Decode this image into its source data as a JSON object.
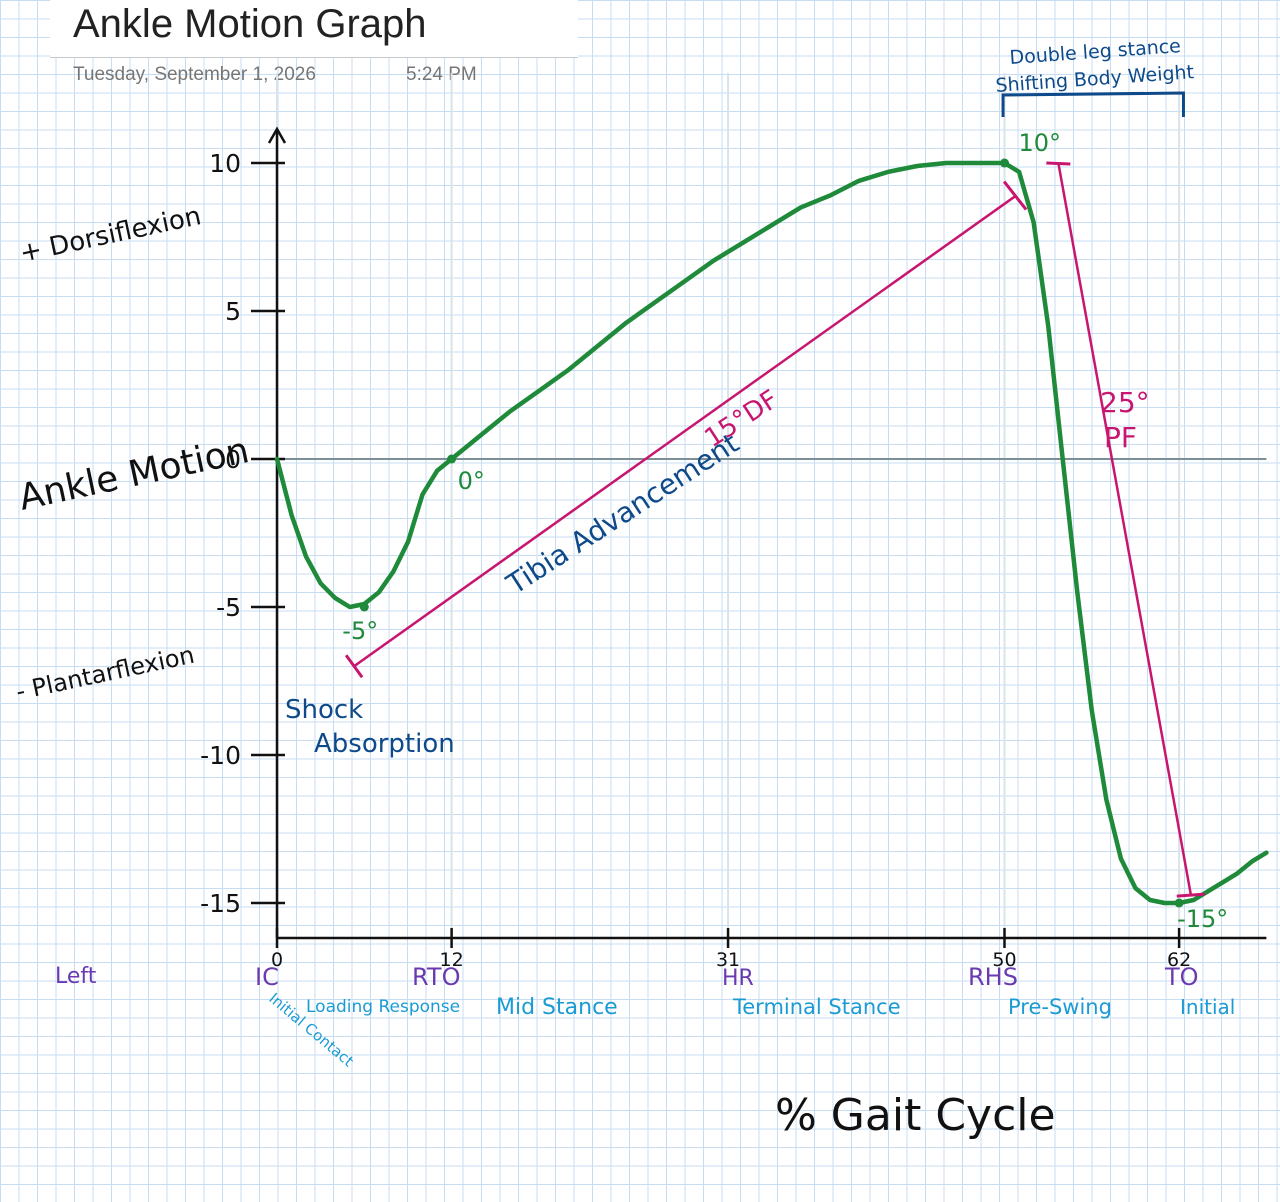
{
  "page": {
    "title": "Ankle Motion Graph",
    "date": "Tuesday, September 1, 2026",
    "time": "5:24 PM"
  },
  "chart_data": {
    "type": "line",
    "title": "Ankle Motion Graph",
    "xlabel": "% Gait Cycle",
    "ylabel": "Ankle Motion",
    "ylabel_positive": "+ Dorsiflexion",
    "ylabel_negative": "- Plantarflexion",
    "x_ticks": [
      0,
      12,
      31,
      50,
      62
    ],
    "y_ticks": [
      10,
      5,
      0,
      -5,
      -10,
      -15
    ],
    "ylim": [
      -15,
      10
    ],
    "xlim": [
      0,
      68
    ],
    "series": [
      {
        "x": [
          0,
          1,
          2,
          3,
          4,
          5,
          6,
          7,
          8,
          9,
          10,
          11,
          12,
          14,
          16,
          18,
          20,
          22,
          24,
          26,
          28,
          30,
          32,
          34,
          36,
          38,
          40,
          42,
          44,
          46,
          48,
          49,
          50,
          51,
          52,
          53,
          54,
          55,
          56,
          57,
          58,
          59,
          60,
          61,
          62,
          63,
          64,
          65,
          66,
          67,
          68
        ],
        "y": [
          0,
          -1.9,
          -3.3,
          -4.2,
          -4.7,
          -5,
          -4.9,
          -4.5,
          -3.8,
          -2.8,
          -1.2,
          -0.4,
          0,
          0.8,
          1.6,
          2.3,
          3.0,
          3.8,
          4.6,
          5.3,
          6.0,
          6.7,
          7.3,
          7.9,
          8.5,
          8.9,
          9.4,
          9.7,
          9.9,
          10,
          10,
          10,
          10,
          9.7,
          8.0,
          4.5,
          0,
          -4.5,
          -8.5,
          -11.5,
          -13.5,
          -14.5,
          -14.9,
          -15,
          -15,
          -14.9,
          -14.6,
          -14.3,
          -14.0,
          -13.6,
          -13.3
        ]
      }
    ],
    "point_labels": [
      {
        "text": "-5°",
        "x": 6,
        "y": -5
      },
      {
        "text": "0°",
        "x": 12,
        "y": 0
      },
      {
        "text": "10°",
        "x": 50,
        "y": 10
      },
      {
        "text": "-15°",
        "x": 62,
        "y": -15
      }
    ],
    "annotations": [
      {
        "text": "15°DF",
        "kind": "span"
      },
      {
        "text": "Tibia Advancement"
      },
      {
        "text": "25°",
        "kind": "span"
      },
      {
        "text": "PF"
      },
      {
        "text": "Shock"
      },
      {
        "text": "Absorption"
      },
      {
        "text": "Double leg stance"
      },
      {
        "text": "Shifting Body Weight"
      }
    ],
    "events": [
      "IC",
      "RTO",
      "HR",
      "RHS",
      "TO"
    ],
    "phases": [
      "Initial Contact",
      "Loading Response",
      "Mid Stance",
      "Terminal Stance",
      "Pre-Swing",
      "Initial"
    ],
    "side_label": "Left",
    "colors": {
      "curve": "#1e8a3a",
      "span": "#c8156f",
      "note": "#0e4a8a",
      "event": "#6a3ab0",
      "phase": "#1b9bd4",
      "axis": "#111111",
      "zero_line": "#7b8f95",
      "grid": "#c7ddf2"
    }
  }
}
